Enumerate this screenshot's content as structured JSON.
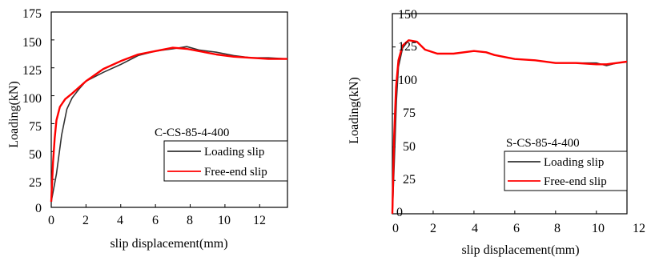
{
  "chart_data": [
    {
      "type": "line",
      "annotation": "C-CS-85-4-400",
      "xlabel": "slip displacement(mm)",
      "ylabel": "Loading(kN)",
      "xlim": [
        0,
        13.6
      ],
      "ylim": [
        0,
        175
      ],
      "x_ticks": [
        "0",
        "2",
        "4",
        "6",
        "8",
        "10",
        "12"
      ],
      "y_ticks": [
        "0",
        "25",
        "50",
        "75",
        "100",
        "125",
        "150",
        "175"
      ],
      "legend_position": "bottom-right",
      "series": [
        {
          "name": "Loading slip",
          "color": "#333333",
          "points": [
            [
              0,
              5
            ],
            [
              0.3,
              30
            ],
            [
              0.6,
              65
            ],
            [
              0.9,
              88
            ],
            [
              1.2,
              98
            ],
            [
              1.6,
              106
            ],
            [
              2,
              113
            ],
            [
              3,
              121
            ],
            [
              4,
              128
            ],
            [
              5,
              136
            ],
            [
              6,
              140
            ],
            [
              7,
              142
            ],
            [
              7.8,
              144
            ],
            [
              8.5,
              141
            ],
            [
              9.5,
              139
            ],
            [
              10.5,
              136
            ],
            [
              11.5,
              134
            ],
            [
              12.5,
              134
            ],
            [
              13.6,
              133
            ]
          ]
        },
        {
          "name": "Free-end slip",
          "color": "#ff0000",
          "points": [
            [
              0,
              5
            ],
            [
              0.1,
              40
            ],
            [
              0.2,
              62
            ],
            [
              0.3,
              78
            ],
            [
              0.5,
              90
            ],
            [
              0.8,
              97
            ],
            [
              1.2,
              102
            ],
            [
              2,
              113
            ],
            [
              3,
              124
            ],
            [
              4,
              131
            ],
            [
              5,
              137
            ],
            [
              6,
              140
            ],
            [
              7,
              143
            ],
            [
              7.8,
              142
            ],
            [
              8.5,
              140
            ],
            [
              9.5,
              137
            ],
            [
              10.5,
              135
            ],
            [
              11.5,
              134
            ],
            [
              12.5,
              133
            ],
            [
              13.6,
              133
            ]
          ]
        }
      ]
    },
    {
      "type": "line",
      "annotation": "S-CS-85-4-400",
      "xlabel": "slip displacement(mm)",
      "ylabel": "Loading(kN)",
      "xlim": [
        0,
        11.5
      ],
      "ylim": [
        0,
        150
      ],
      "x_ticks": [
        "0",
        "2",
        "4",
        "6",
        "8",
        "10",
        "12"
      ],
      "y_ticks": [
        "0",
        "25",
        "50",
        "75",
        "100",
        "125",
        "150"
      ],
      "legend_position": "bottom-right",
      "series": [
        {
          "name": "Loading slip",
          "color": "#333333",
          "points": [
            [
              0,
              0
            ],
            [
              0.1,
              40
            ],
            [
              0.2,
              85
            ],
            [
              0.3,
              110
            ],
            [
              0.5,
              124
            ],
            [
              0.8,
              130
            ],
            [
              1.2,
              129
            ],
            [
              1.6,
              123
            ],
            [
              2.2,
              120
            ],
            [
              3,
              120
            ],
            [
              4,
              122
            ],
            [
              4.6,
              121
            ],
            [
              5,
              119
            ],
            [
              6,
              116
            ],
            [
              7,
              115
            ],
            [
              8,
              113
            ],
            [
              9,
              113
            ],
            [
              10,
              113
            ],
            [
              10.5,
              111
            ],
            [
              11,
              113
            ],
            [
              11.5,
              114
            ]
          ]
        },
        {
          "name": "Free-end slip",
          "color": "#ff0000",
          "points": [
            [
              0,
              0
            ],
            [
              0.08,
              55
            ],
            [
              0.18,
              95
            ],
            [
              0.3,
              115
            ],
            [
              0.5,
              126
            ],
            [
              0.8,
              130
            ],
            [
              1.2,
              129
            ],
            [
              1.6,
              123
            ],
            [
              2.2,
              120
            ],
            [
              3,
              120
            ],
            [
              4,
              122
            ],
            [
              4.6,
              121
            ],
            [
              5,
              119
            ],
            [
              6,
              116
            ],
            [
              7,
              115
            ],
            [
              8,
              113
            ],
            [
              9,
              113
            ],
            [
              10,
              112
            ],
            [
              10.5,
              112
            ],
            [
              11,
              113
            ],
            [
              11.5,
              114
            ]
          ]
        }
      ]
    }
  ]
}
